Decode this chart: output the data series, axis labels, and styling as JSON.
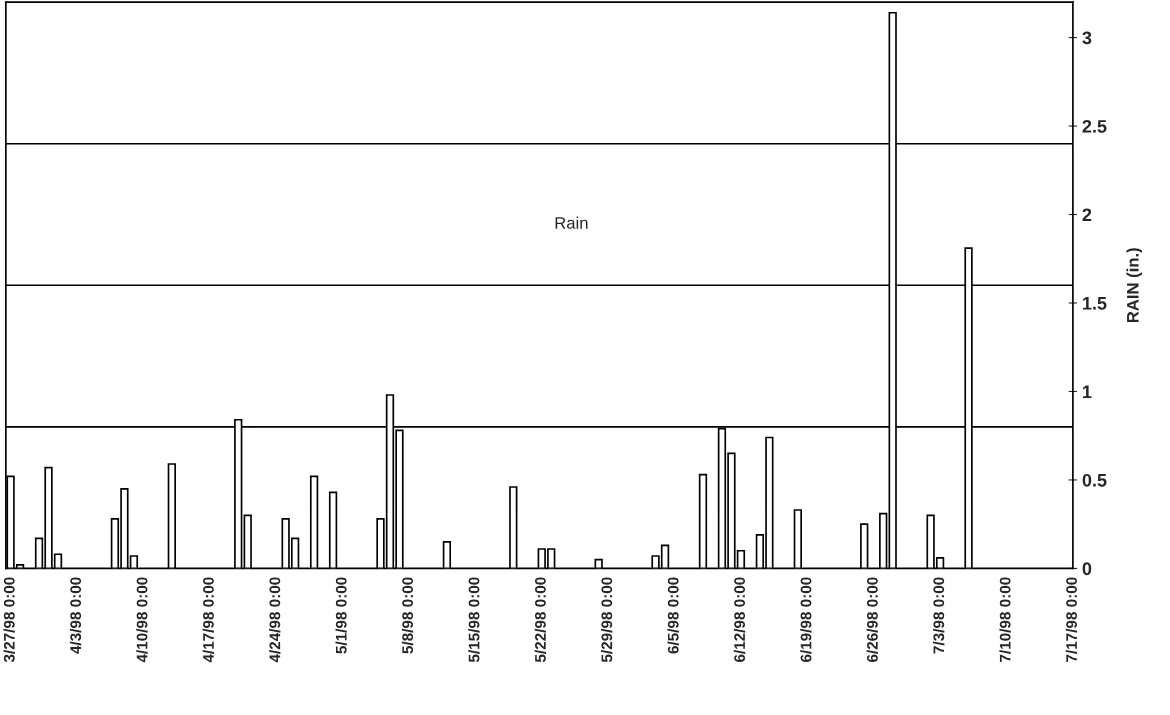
{
  "chart_data": {
    "type": "bar",
    "ylabel": "RAIN (in.)",
    "annotations": [
      "Rain"
    ],
    "x": [
      "1998-03-27",
      "1998-03-28",
      "1998-03-30",
      "1998-03-31",
      "1998-04-01",
      "1998-04-07",
      "1998-04-08",
      "1998-04-09",
      "1998-04-13",
      "1998-04-20",
      "1998-04-21",
      "1998-04-25",
      "1998-04-26",
      "1998-04-28",
      "1998-04-30",
      "1998-05-05",
      "1998-05-06",
      "1998-05-07",
      "1998-05-12",
      "1998-05-19",
      "1998-05-22",
      "1998-05-23",
      "1998-05-28",
      "1998-06-03",
      "1998-06-04",
      "1998-06-08",
      "1998-06-10",
      "1998-06-11",
      "1998-06-12",
      "1998-06-14",
      "1998-06-15",
      "1998-06-18",
      "1998-06-25",
      "1998-06-27",
      "1998-06-28",
      "1998-07-02",
      "1998-07-03",
      "1998-07-06"
    ],
    "series": [
      {
        "color": "#ffffff",
        "values": [
          0.52,
          0.02,
          0.17,
          0.57,
          0.08,
          0.28,
          0.45,
          0.07,
          0.59,
          0.84,
          0.3,
          0.28,
          0.17,
          0.52,
          0.43,
          0.28,
          0.98,
          0.78,
          0.15,
          0.46,
          0.11,
          0.11,
          0.05,
          0.07,
          0.13,
          0.53,
          0.79,
          0.65,
          0.1,
          0.19,
          0.74,
          0.33,
          0.25,
          0.31,
          3.14,
          0.3,
          0.06,
          1.81
        ]
      }
    ],
    "xlim": [
      "1998-03-26T12:00",
      "1998-07-17T00:00"
    ],
    "xticks": [
      {
        "value": "1998-03-27",
        "label": "3/27/98 0:00"
      },
      {
        "value": "1998-04-03",
        "label": "4/3/98 0:00"
      },
      {
        "value": "1998-04-10",
        "label": "4/10/98 0:00"
      },
      {
        "value": "1998-04-17",
        "label": "4/17/98 0:00"
      },
      {
        "value": "1998-04-24",
        "label": "4/24/98 0:00"
      },
      {
        "value": "1998-05-01",
        "label": "5/1/98 0:00"
      },
      {
        "value": "1998-05-08",
        "label": "5/8/98 0:00"
      },
      {
        "value": "1998-05-15",
        "label": "5/15/98 0:00"
      },
      {
        "value": "1998-05-22",
        "label": "5/22/98 0:00"
      },
      {
        "value": "1998-05-29",
        "label": "5/29/98 0:00"
      },
      {
        "value": "1998-06-05",
        "label": "6/5/98 0:00"
      },
      {
        "value": "1998-06-12",
        "label": "6/12/98 0:00"
      },
      {
        "value": "1998-06-19",
        "label": "6/19/98 0:00"
      },
      {
        "value": "1998-06-26",
        "label": "6/26/98 0:00"
      },
      {
        "value": "1998-07-03",
        "label": "7/3/98 0:00"
      },
      {
        "value": "1998-07-10",
        "label": "7/10/98 0:00"
      },
      {
        "value": "1998-07-17",
        "label": "7/17/98 0:00"
      }
    ],
    "ylim": [
      0,
      3.2
    ],
    "yticks": [
      0,
      0.5,
      1,
      1.5,
      2,
      2.5,
      3
    ],
    "ref_lines": [
      {
        "axis": "y",
        "value": 0.8,
        "color": "#000000"
      },
      {
        "axis": "y",
        "value": 1.6,
        "color": "#000000"
      },
      {
        "axis": "y",
        "value": 2.4,
        "color": "#000000"
      }
    ],
    "grid": false,
    "legend": false
  }
}
